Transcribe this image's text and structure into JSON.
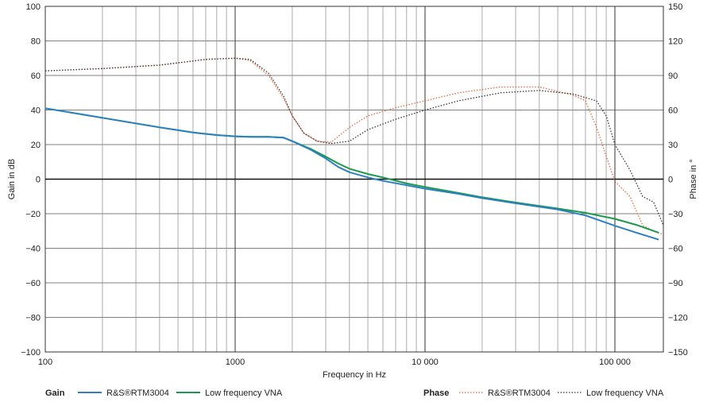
{
  "chart_data": {
    "type": "line",
    "xlabel": "Frequency in Hz",
    "ylabel_left": "Gain in dB",
    "ylabel_right": "Phase in °",
    "x_scale": "log",
    "xlim": [
      100,
      180000
    ],
    "ylim_left": [
      -100,
      100
    ],
    "ylim_right": [
      -150,
      150
    ],
    "x_ticks": [
      100,
      1000,
      10000,
      100000
    ],
    "x_tick_labels": [
      "100",
      "1000",
      "10 000",
      "100 000"
    ],
    "y_left_ticks": [
      100,
      80,
      60,
      40,
      20,
      0,
      -20,
      -40,
      -60,
      -80,
      -100
    ],
    "y_left_tick_labels": [
      "100",
      "80",
      "60",
      "40",
      "20",
      "0",
      "−20",
      "−40",
      "−60",
      "−80",
      "−100"
    ],
    "y_right_ticks": [
      150,
      120,
      90,
      60,
      30,
      0,
      -30,
      -60,
      -90,
      -120,
      -150
    ],
    "y_right_tick_labels": [
      "150",
      "120",
      "90",
      "60",
      "30",
      "0",
      "−30",
      "−60",
      "−90",
      "−120",
      "−150"
    ],
    "grid": true,
    "legend": {
      "gain_heading": "Gain",
      "phase_heading": "Phase",
      "placement": "bottom"
    },
    "series": [
      {
        "group": "Gain",
        "name": "R&S®RTM3004",
        "axis": "left",
        "color": "#2d7fc4",
        "style": "solid",
        "points": [
          [
            100,
            41
          ],
          [
            200,
            35.5
          ],
          [
            400,
            30
          ],
          [
            600,
            27
          ],
          [
            800,
            25.5
          ],
          [
            1000,
            24.8
          ],
          [
            1200,
            24.5
          ],
          [
            1500,
            24.5
          ],
          [
            1800,
            24
          ],
          [
            2000,
            22
          ],
          [
            2500,
            17
          ],
          [
            3000,
            12
          ],
          [
            3500,
            7
          ],
          [
            4000,
            4
          ],
          [
            5000,
            1
          ],
          [
            6000,
            -1
          ],
          [
            8000,
            -3.5
          ],
          [
            10000,
            -5.5
          ],
          [
            15000,
            -8.5
          ],
          [
            20000,
            -11
          ],
          [
            30000,
            -14
          ],
          [
            50000,
            -17.5
          ],
          [
            70000,
            -21
          ],
          [
            100000,
            -27
          ],
          [
            130000,
            -31
          ],
          [
            170000,
            -35
          ]
        ]
      },
      {
        "group": "Gain",
        "name": "Low frequency VNA",
        "axis": "left",
        "color": "#1a9a4a",
        "style": "solid",
        "points": [
          [
            100,
            41
          ],
          [
            200,
            35.5
          ],
          [
            400,
            30
          ],
          [
            600,
            27
          ],
          [
            800,
            25.5
          ],
          [
            1000,
            24.8
          ],
          [
            1200,
            24.5
          ],
          [
            1500,
            24.5
          ],
          [
            1800,
            24
          ],
          [
            2000,
            22
          ],
          [
            2500,
            17.5
          ],
          [
            3000,
            13
          ],
          [
            3500,
            9
          ],
          [
            4000,
            6
          ],
          [
            5000,
            3
          ],
          [
            6000,
            1
          ],
          [
            8000,
            -2.5
          ],
          [
            10000,
            -4.5
          ],
          [
            15000,
            -8
          ],
          [
            20000,
            -10.5
          ],
          [
            30000,
            -13.5
          ],
          [
            50000,
            -17
          ],
          [
            70000,
            -19.5
          ],
          [
            100000,
            -23
          ],
          [
            130000,
            -26.5
          ],
          [
            170000,
            -31
          ]
        ]
      },
      {
        "group": "Phase",
        "name": "R&S®RTM3004",
        "axis": "right",
        "color": "#e8663a",
        "style": "dotted",
        "points": [
          [
            100,
            94
          ],
          [
            200,
            96
          ],
          [
            400,
            99
          ],
          [
            700,
            104
          ],
          [
            1000,
            105
          ],
          [
            1200,
            103
          ],
          [
            1500,
            90
          ],
          [
            1800,
            70
          ],
          [
            2000,
            55
          ],
          [
            2300,
            40
          ],
          [
            2700,
            33
          ],
          [
            3200,
            32
          ],
          [
            4000,
            45
          ],
          [
            5000,
            55
          ],
          [
            7000,
            62
          ],
          [
            10000,
            68
          ],
          [
            15000,
            75
          ],
          [
            25000,
            80
          ],
          [
            40000,
            80
          ],
          [
            60000,
            73
          ],
          [
            70000,
            68
          ],
          [
            80000,
            45
          ],
          [
            90000,
            20
          ],
          [
            100000,
            -2
          ],
          [
            120000,
            -15
          ],
          [
            140000,
            -40
          ],
          [
            160000,
            -45
          ],
          [
            180000,
            -48
          ]
        ]
      },
      {
        "group": "Phase",
        "name": "Low frequency VNA",
        "axis": "right",
        "color": "#333333",
        "style": "dotted",
        "points": [
          [
            100,
            94
          ],
          [
            200,
            96
          ],
          [
            400,
            99
          ],
          [
            700,
            104
          ],
          [
            1000,
            105
          ],
          [
            1200,
            104
          ],
          [
            1500,
            92
          ],
          [
            1800,
            72
          ],
          [
            2000,
            55
          ],
          [
            2300,
            40
          ],
          [
            2700,
            33
          ],
          [
            3200,
            31
          ],
          [
            4000,
            33
          ],
          [
            5000,
            43
          ],
          [
            7000,
            52
          ],
          [
            10000,
            60
          ],
          [
            15000,
            68
          ],
          [
            25000,
            75
          ],
          [
            40000,
            77
          ],
          [
            60000,
            74
          ],
          [
            80000,
            68
          ],
          [
            90000,
            55
          ],
          [
            100000,
            30
          ],
          [
            120000,
            8
          ],
          [
            140000,
            -15
          ],
          [
            160000,
            -20
          ],
          [
            180000,
            -40
          ]
        ]
      }
    ]
  }
}
